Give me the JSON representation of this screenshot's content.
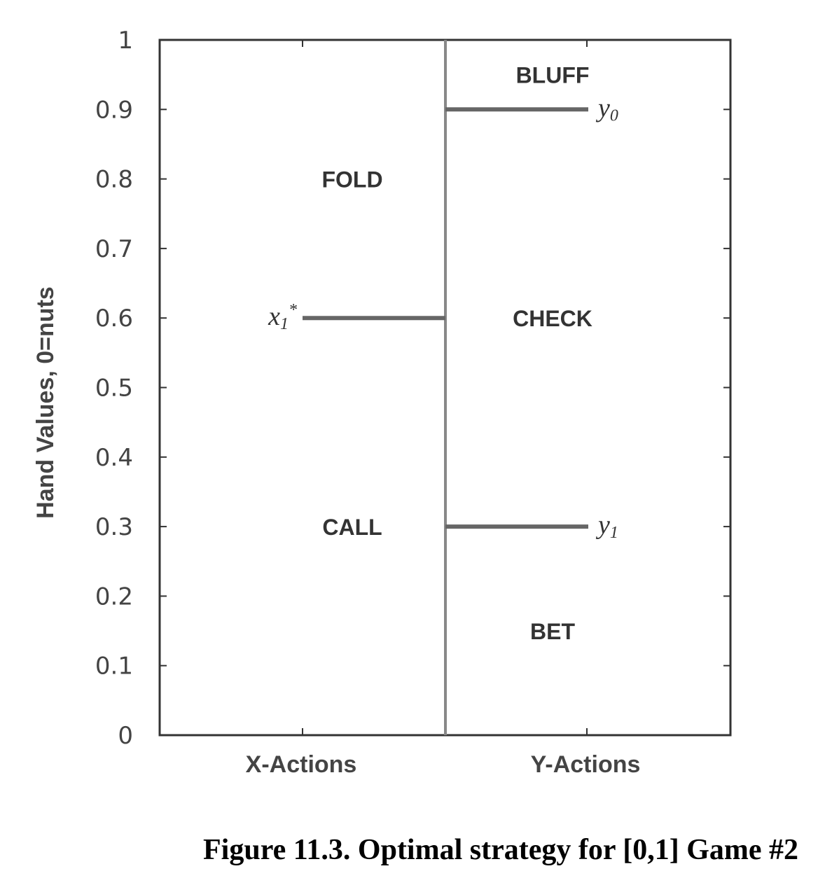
{
  "chart_data": {
    "type": "diagram-chart",
    "ylabel": "Hand Values, 0=nuts",
    "ylim": [
      0,
      1
    ],
    "yticks": [
      "0",
      "0.1",
      "0.2",
      "0.3",
      "0.4",
      "0.5",
      "0.6",
      "0.7",
      "0.8",
      "0.9",
      "1"
    ],
    "categories": [
      "X-Actions",
      "Y-Actions"
    ],
    "thresholds": [
      {
        "column": "X-Actions",
        "value": 0.6,
        "label_main": "x",
        "label_sub": "1",
        "label_sup": "*"
      },
      {
        "column": "Y-Actions",
        "value": 0.9,
        "label_main": "y",
        "label_sub": "0"
      },
      {
        "column": "Y-Actions",
        "value": 0.3,
        "label_main": "y",
        "label_sub": "1"
      }
    ],
    "regions": [
      {
        "column": "X-Actions",
        "label": "FOLD",
        "value": 0.8
      },
      {
        "column": "X-Actions",
        "label": "CALL",
        "value": 0.3
      },
      {
        "column": "Y-Actions",
        "label": "BLUFF",
        "value": 0.95
      },
      {
        "column": "Y-Actions",
        "label": "CHECK",
        "value": 0.6
      },
      {
        "column": "Y-Actions",
        "label": "BET",
        "value": 0.15
      }
    ],
    "colors": {
      "threshold": "#666666",
      "axis": "#333333",
      "divider": "#888888"
    }
  },
  "caption": "Figure 11.3. Optimal strategy for [0,1] Game #2"
}
